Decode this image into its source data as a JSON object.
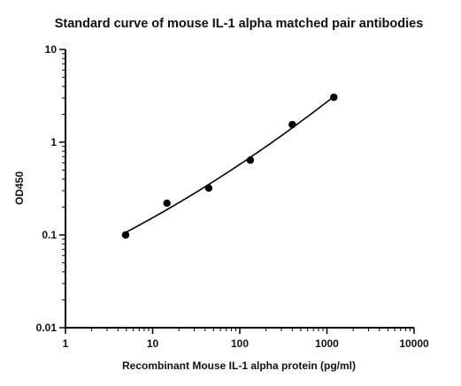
{
  "chart_data": {
    "type": "scatter",
    "title": "Standard curve of mouse IL-1 alpha matched pair antibodies",
    "xlabel": "Recombinant Mouse IL-1 alpha protein (pg/ml)",
    "ylabel": "OD450",
    "x_scale": "log",
    "y_scale": "log",
    "xlim": [
      1,
      10000
    ],
    "ylim": [
      0.01,
      10
    ],
    "x_ticks": [
      1,
      10,
      100,
      1000,
      10000
    ],
    "x_tick_labels": [
      "1",
      "10",
      "100",
      "1000",
      "10000"
    ],
    "y_ticks": [
      0.01,
      0.1,
      1,
      10
    ],
    "y_tick_labels": [
      "0.01",
      "0.1",
      "1",
      "10"
    ],
    "grid": false,
    "series": [
      {
        "x": [
          4.9,
          14.6,
          44,
          132,
          400,
          1200
        ],
        "y": [
          0.1,
          0.22,
          0.32,
          0.64,
          1.55,
          3.05
        ],
        "fit_curve": true
      }
    ]
  }
}
